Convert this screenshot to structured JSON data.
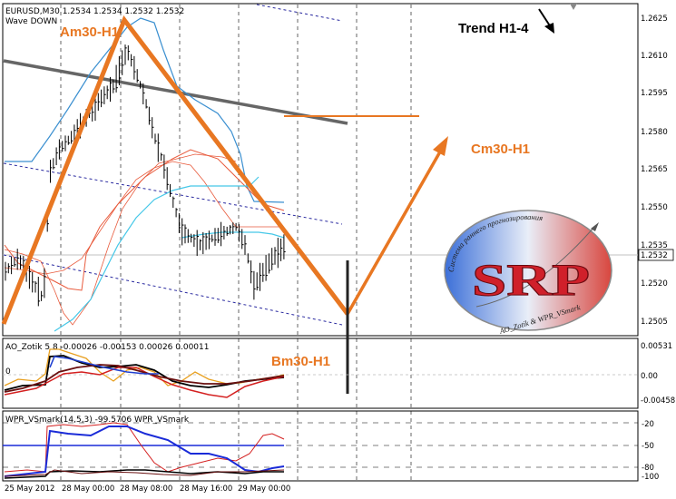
{
  "header": {
    "symbol_line": "EURUSD,M30  1.2534 1.2534 1.2532 1.2532",
    "indicator_line": "Wave DOWN"
  },
  "annotations": {
    "am": "Am30-H1",
    "bm": "Bm30-H1",
    "cm": "Cm30-H1",
    "trend": "Trend H1-4"
  },
  "logo": {
    "letters": "SRP",
    "arc_top": "Система раннего прогнозирования",
    "arc_bottom": "AO_Zotik & WPR_VSmark"
  },
  "price_axis": {
    "ticks": [
      "1.2625",
      "1.2610",
      "1.2595",
      "1.2580",
      "1.2565",
      "1.2550",
      "1.2535",
      "1.2520",
      "1.2505"
    ],
    "current_price": "1.2532"
  },
  "ao_panel": {
    "title": "AO_Zotik 5 8 -0.00026 -0.00153 0.00026 0.00011",
    "zero_label": "0",
    "ticks": [
      "0.00531",
      "0.00",
      "-0.00458"
    ]
  },
  "wpr_panel": {
    "title": "WPR_VSmark(14,5,3) -99.5706  WPR_VSmark",
    "ticks": [
      "-20",
      "-50",
      "-80",
      "-100"
    ]
  },
  "time_axis": [
    "25 May 2012",
    "28 May 00:00",
    "28 May 08:00",
    "28 May 16:00",
    "29 May 00:00"
  ],
  "colors": {
    "wave": "#e87722",
    "upper_band": "#3a8fd0",
    "ma_red": "#e85a3c",
    "ma_cyan": "#46c8e8",
    "regression": "#606060",
    "channel": "#2a2aa0"
  },
  "chart_data": {
    "type": "candlestick",
    "x": [
      "25 May 2012",
      "28 May 00:00",
      "28 May 08:00",
      "28 May 16:00",
      "29 May 00:00"
    ],
    "ylim": [
      1.2498,
      1.2633
    ],
    "wave_points": [
      {
        "label": "Am30-H1",
        "price": 1.2626
      },
      {
        "label": "Bm30-H1",
        "price": 1.2513
      },
      {
        "label": "Cm30-H1",
        "price": 1.258
      }
    ],
    "target_level": 1.2597,
    "last_price": 1.2532
  }
}
